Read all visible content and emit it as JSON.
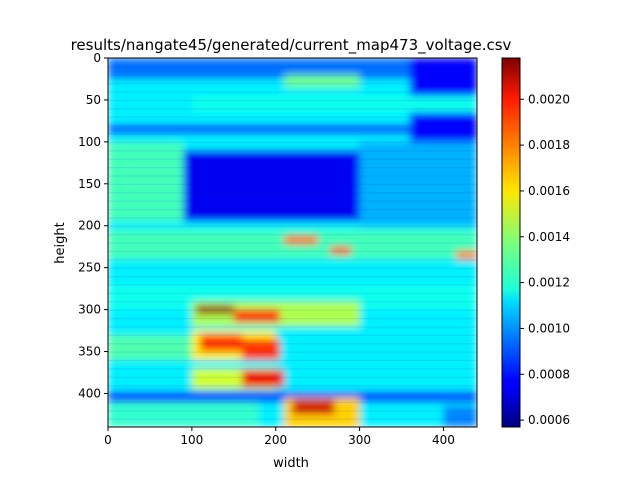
{
  "chart_data": {
    "type": "heatmap",
    "title": "results/nangate45/generated/current_map473_voltage.csv",
    "xlabel": "width",
    "ylabel": "height",
    "xlim": [
      0,
      440
    ],
    "ylim": [
      440,
      0
    ],
    "x_ticks": [
      0,
      100,
      200,
      300,
      400
    ],
    "y_ticks": [
      0,
      50,
      100,
      150,
      200,
      250,
      300,
      350,
      400
    ],
    "colormap": "jet",
    "colorbar": {
      "min": 0.00057,
      "max": 0.00218,
      "ticks": [
        "0.0006",
        "0.0008",
        "0.0010",
        "0.0012",
        "0.0014",
        "0.0016",
        "0.0018",
        "0.0020"
      ]
    },
    "regions": [
      {
        "x": [
          0,
          440
        ],
        "y": [
          0,
          440
        ],
        "value": 0.00115
      },
      {
        "x": [
          0,
          440
        ],
        "y": [
          0,
          25
        ],
        "value": 0.00095
      },
      {
        "x": [
          360,
          440
        ],
        "y": [
          0,
          120
        ],
        "value": 0.00078
      },
      {
        "x": [
          210,
          300
        ],
        "y": [
          20,
          35
        ],
        "value": 0.00135
      },
      {
        "x": [
          100,
          440
        ],
        "y": [
          45,
          65
        ],
        "value": 0.0012
      },
      {
        "x": [
          0,
          440
        ],
        "y": [
          80,
          90
        ],
        "value": 0.00078
      },
      {
        "x": [
          90,
          300
        ],
        "y": [
          110,
          195
        ],
        "value": 0.00075
      },
      {
        "x": [
          0,
          90
        ],
        "y": [
          100,
          195
        ],
        "value": 0.00128
      },
      {
        "x": [
          300,
          440
        ],
        "y": [
          100,
          200
        ],
        "value": 0.00105
      },
      {
        "x": [
          0,
          440
        ],
        "y": [
          205,
          240
        ],
        "value": 0.00128
      },
      {
        "x": [
          210,
          250
        ],
        "y": [
          212,
          222
        ],
        "value": 0.00185
      },
      {
        "x": [
          265,
          290
        ],
        "y": [
          225,
          234
        ],
        "value": 0.0019
      },
      {
        "x": [
          415,
          440
        ],
        "y": [
          230,
          240
        ],
        "value": 0.00178
      },
      {
        "x": [
          0,
          440
        ],
        "y": [
          270,
          300
        ],
        "value": 0.0012
      },
      {
        "x": [
          100,
          300
        ],
        "y": [
          290,
          320
        ],
        "value": 0.00145
      },
      {
        "x": [
          105,
          150
        ],
        "y": [
          295,
          305
        ],
        "value": 0.00215
      },
      {
        "x": [
          150,
          205
        ],
        "y": [
          300,
          315
        ],
        "value": 0.00195
      },
      {
        "x": [
          100,
          200
        ],
        "y": [
          325,
          360
        ],
        "value": 0.0016
      },
      {
        "x": [
          110,
          160
        ],
        "y": [
          330,
          350
        ],
        "value": 0.0019
      },
      {
        "x": [
          160,
          205
        ],
        "y": [
          335,
          360
        ],
        "value": 0.0019
      },
      {
        "x": [
          0,
          100
        ],
        "y": [
          330,
          360
        ],
        "value": 0.0013
      },
      {
        "x": [
          100,
          200
        ],
        "y": [
          370,
          395
        ],
        "value": 0.0015
      },
      {
        "x": [
          160,
          210
        ],
        "y": [
          372,
          392
        ],
        "value": 0.002
      },
      {
        "x": [
          0,
          440
        ],
        "y": [
          398,
          410
        ],
        "value": 0.00082
      },
      {
        "x": [
          210,
          300
        ],
        "y": [
          405,
          440
        ],
        "value": 0.00165
      },
      {
        "x": [
          220,
          270
        ],
        "y": [
          408,
          425
        ],
        "value": 0.00205
      },
      {
        "x": [
          0,
          180
        ],
        "y": [
          410,
          440
        ],
        "value": 0.00125
      },
      {
        "x": [
          400,
          440
        ],
        "y": [
          415,
          440
        ],
        "value": 0.00098
      }
    ]
  }
}
